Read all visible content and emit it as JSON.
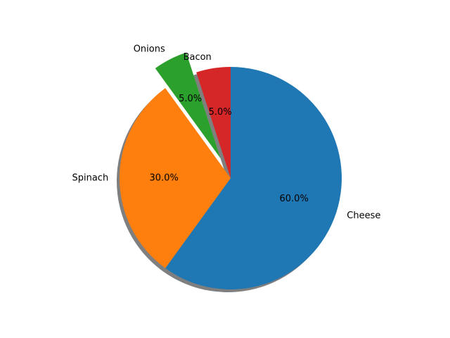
{
  "chart_data": {
    "type": "pie",
    "title": "",
    "slices": [
      {
        "label": "Cheese",
        "value": 60,
        "pct_label": "60.0%",
        "color": "#1f77b4",
        "exploded": false
      },
      {
        "label": "Spinach",
        "value": 30,
        "pct_label": "30.0%",
        "color": "#ff7f0e",
        "exploded": false
      },
      {
        "label": "Onions",
        "value": 5,
        "pct_label": "5.0%",
        "color": "#2ca02c",
        "exploded": true
      },
      {
        "label": "Bacon",
        "value": 5,
        "pct_label": "5.0%",
        "color": "#d62728",
        "exploded": false
      }
    ],
    "start_angle_deg": 90,
    "direction": "clockwise",
    "shadow": true,
    "legend": false
  }
}
